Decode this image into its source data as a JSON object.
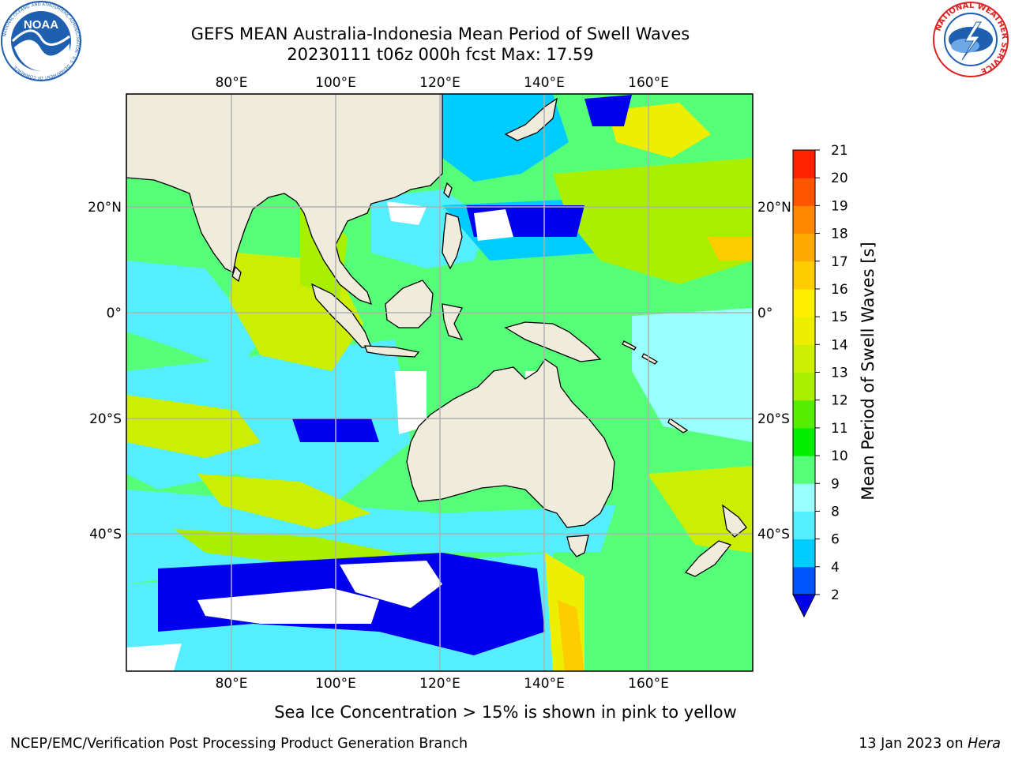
{
  "header": {
    "title_line1": "GEFS MEAN Australia-Indonesia Mean Period of Swell Waves",
    "title_line2": "20230111 t06z 000h fcst   Max: 17.59"
  },
  "logos": {
    "noaa_text": "NOAA",
    "noaa_ring": "NATIONAL OCEANIC AND ATMOSPHERIC ADMINISTRATION · U.S. DEPARTMENT OF COMMERCE",
    "nws_ring": "NATIONAL WEATHER SERVICE"
  },
  "map": {
    "lon_ticks": [
      "80°E",
      "100°E",
      "120°E",
      "140°E",
      "160°E"
    ],
    "lat_ticks": [
      "20°N",
      "0°",
      "20°S",
      "40°S"
    ],
    "land_color": "#efecdc",
    "grid_color": "#b0b0b0"
  },
  "colorbar": {
    "label": "Mean Period of Swell Waves [s]",
    "ticks": [
      "2",
      "4",
      "6",
      "8",
      "9",
      "10",
      "11",
      "12",
      "13",
      "14",
      "15",
      "16",
      "17",
      "18",
      "19",
      "20",
      "21"
    ],
    "colors": [
      "#0055ff",
      "#00ccff",
      "#55eeff",
      "#99ffff",
      "#55ff77",
      "#00ee00",
      "#55ee00",
      "#aaee00",
      "#ccee00",
      "#eeee00",
      "#ffee00",
      "#ffcc00",
      "#ffaa00",
      "#ff8800",
      "#ff5500",
      "#ff2200"
    ],
    "under_color": "#0000ee"
  },
  "footer": {
    "note": "Sea Ice Concentration > 15% is shown in pink to yellow",
    "credit": "NCEP/EMC/Verification Post Processing Product Generation Branch",
    "date_prefix": "13 Jan 2023 on ",
    "machine": "Hera"
  }
}
